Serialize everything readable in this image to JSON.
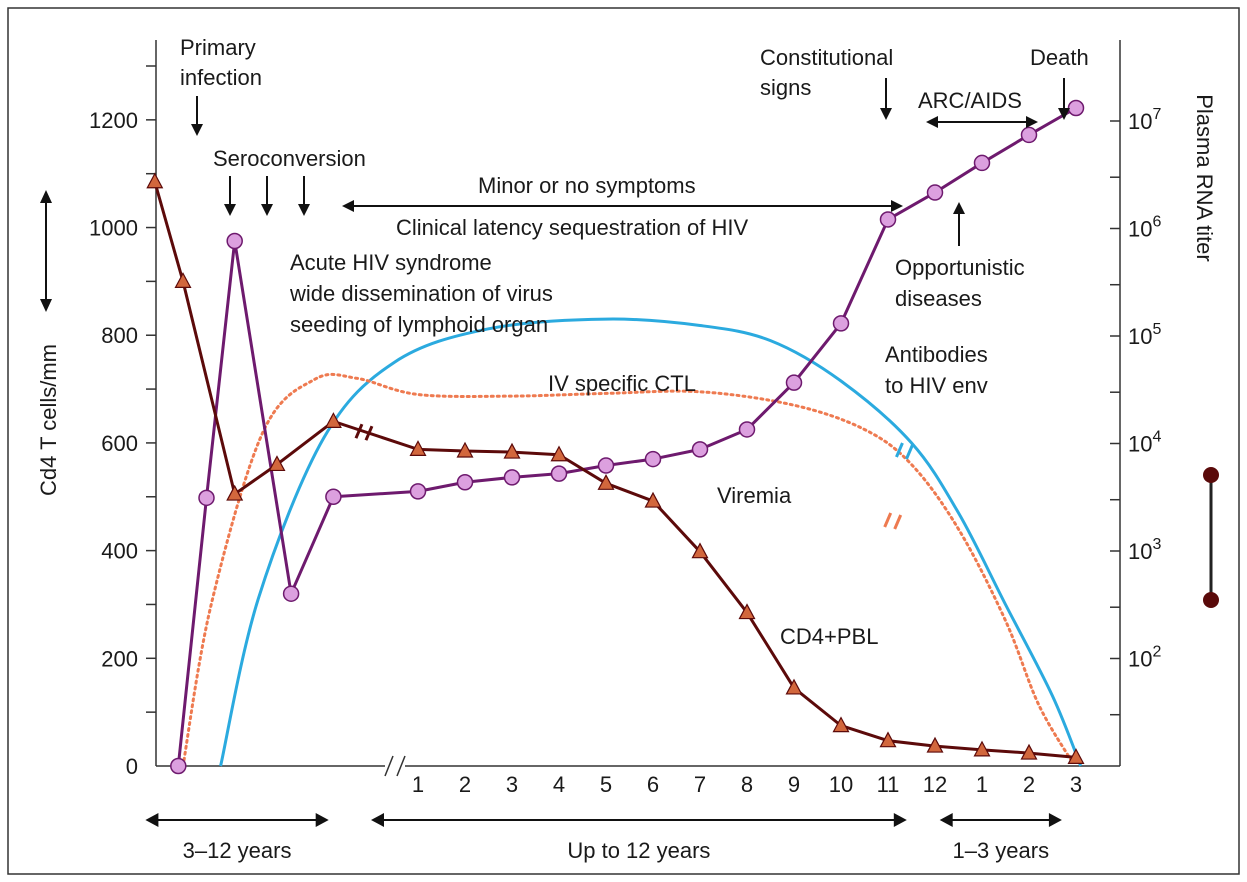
{
  "chart_data": {
    "type": "line",
    "title": "",
    "ylabel_left": "Cd4 T cells/mm",
    "ylabel_right": "Plasma RNA titer",
    "ylim_left": [
      0,
      1300
    ],
    "yticks_left": [
      0,
      200,
      400,
      600,
      800,
      1000,
      1200
    ],
    "ylim_right_log10": [
      1,
      7
    ],
    "yticks_right": [
      {
        "base": "10",
        "exp": "2",
        "value": 100
      },
      {
        "base": "10",
        "exp": "3",
        "value": 1000
      },
      {
        "base": "10",
        "exp": "4",
        "value": 10000
      },
      {
        "base": "10",
        "exp": "5",
        "value": 100000
      },
      {
        "base": "10",
        "exp": "6",
        "value": 1000000
      },
      {
        "base": "10",
        "exp": "7",
        "value": 10000000
      }
    ],
    "x_break_symbol": "//",
    "x_ticks": [
      "1",
      "2",
      "3",
      "4",
      "5",
      "6",
      "7",
      "8",
      "9",
      "10",
      "11",
      "12",
      "1",
      "2",
      "3"
    ],
    "x_tick_positions": [
      1,
      2,
      3,
      4,
      5,
      6,
      7,
      8,
      9,
      10,
      11,
      12,
      13,
      14,
      15
    ],
    "x_periods": [
      {
        "label": "3–12 years",
        "from": -4.8,
        "to": -0.9
      },
      {
        "label": "Up to 12 years",
        "from": 0.0,
        "to": 11.4
      },
      {
        "label": "1–3 years",
        "from": 12.1,
        "to": 14.7
      }
    ],
    "series": [
      {
        "name": "CD4+PBL",
        "color": "#5c0a0a",
        "marker": "triangle",
        "marker_fill": "#d2673d",
        "points": [
          [
            -4.6,
            1085
          ],
          [
            -4.0,
            900
          ],
          [
            -2.9,
            505
          ],
          [
            -2.0,
            560
          ],
          [
            -0.8,
            640
          ],
          [
            1.0,
            588
          ],
          [
            2.0,
            585
          ],
          [
            3.0,
            583
          ],
          [
            4.0,
            578
          ],
          [
            5.0,
            525
          ],
          [
            6.0,
            492
          ],
          [
            7.0,
            398
          ],
          [
            8.0,
            285
          ],
          [
            9.0,
            145
          ],
          [
            10.0,
            75
          ],
          [
            11.0,
            47
          ],
          [
            12.0,
            37
          ],
          [
            13.0,
            30
          ],
          [
            14.0,
            24
          ],
          [
            15.0,
            16
          ]
        ]
      },
      {
        "name": "Viremia",
        "color": "#6e1a6e",
        "marker": "circle",
        "marker_fill": "#dca0df",
        "points": [
          [
            -4.1,
            0
          ],
          [
            -3.5,
            498
          ],
          [
            -2.9,
            975
          ],
          [
            -1.7,
            320
          ],
          [
            -0.8,
            500
          ],
          [
            1.0,
            510
          ],
          [
            2.0,
            527
          ],
          [
            3.0,
            536
          ],
          [
            4.0,
            543
          ],
          [
            5.0,
            558
          ],
          [
            6.0,
            570
          ],
          [
            7.0,
            588
          ],
          [
            8.0,
            625
          ],
          [
            9.0,
            712
          ],
          [
            10.0,
            822
          ],
          [
            11.0,
            1015
          ],
          [
            12.0,
            1065
          ],
          [
            13.0,
            1120
          ],
          [
            14.0,
            1172
          ],
          [
            15.0,
            1222
          ]
        ]
      },
      {
        "name": "Antibodies to HIV env",
        "color": "#2baadf",
        "style": "solid",
        "points": [
          [
            -3.2,
            0
          ],
          [
            -2.4,
            310
          ],
          [
            -1.0,
            610
          ],
          [
            0.5,
            750
          ],
          [
            2.5,
            812
          ],
          [
            5.0,
            830
          ],
          [
            7.0,
            818
          ],
          [
            8.5,
            790
          ],
          [
            10.0,
            715
          ],
          [
            11.5,
            600
          ],
          [
            12.5,
            470
          ],
          [
            13.5,
            300
          ],
          [
            14.5,
            130
          ],
          [
            15.1,
            0
          ]
        ]
      },
      {
        "name": "IV specific CTL",
        "color": "#ee7a50",
        "style": "dotted",
        "points": [
          [
            -4.0,
            0
          ],
          [
            -3.4,
            300
          ],
          [
            -2.3,
            620
          ],
          [
            -1.2,
            718
          ],
          [
            -0.3,
            720
          ],
          [
            1.0,
            690
          ],
          [
            3.0,
            687
          ],
          [
            5.0,
            692
          ],
          [
            7.0,
            695
          ],
          [
            9.0,
            670
          ],
          [
            10.5,
            625
          ],
          [
            11.5,
            560
          ],
          [
            12.5,
            440
          ],
          [
            13.5,
            270
          ],
          [
            14.2,
            115
          ],
          [
            14.9,
            10
          ]
        ]
      }
    ],
    "annotations": {
      "primary_infection": [
        "Primary",
        "infection"
      ],
      "seroconversion": "Seroconversion",
      "acute": [
        "Acute HIV syndrome",
        "wide dissemination of virus",
        "seeding of lymphoid organ"
      ],
      "minor": "Minor or no symptoms",
      "latency": "Clinical latency sequestration of HIV",
      "constitutional": [
        "Constitutional",
        "signs"
      ],
      "death": "Death",
      "arc_aids": "ARC/AIDS",
      "opportunistic": [
        "Opportunistic",
        "diseases"
      ],
      "antibodies": [
        "Antibodies",
        "to HIV env"
      ],
      "ctl": "IV specific CTL",
      "viremia": "Viremia",
      "cd4pbl": "CD4+PBL"
    }
  }
}
